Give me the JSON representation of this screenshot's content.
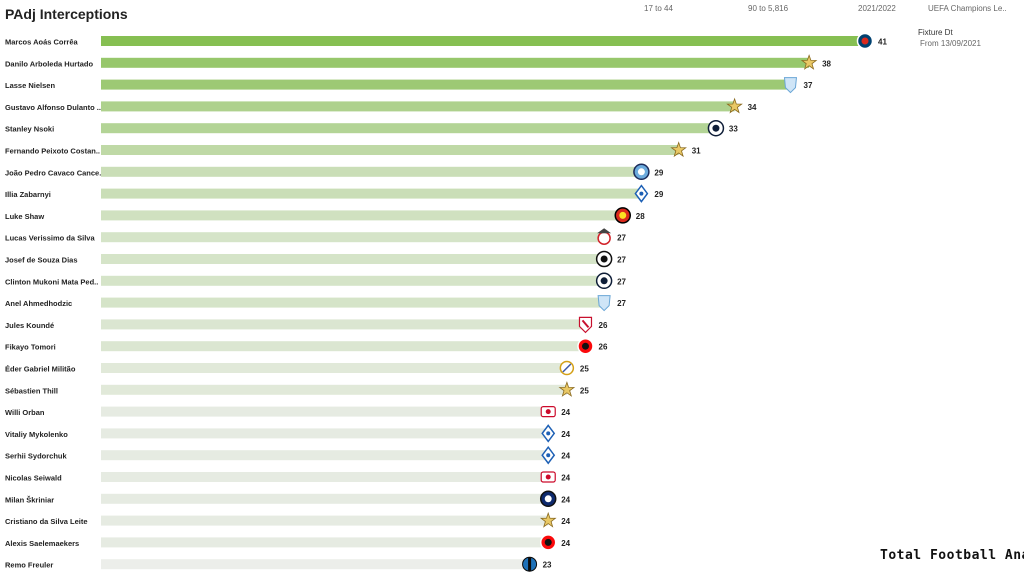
{
  "header": {
    "title": "PAdj Interceptions",
    "filter_age": "17 to 44",
    "filter_minutes": "90 to 5,816",
    "season": "2021/2022",
    "competition": "UEFA Champions Le..",
    "fixture_label": "Fixture Dt",
    "fixture_value": "From 13/09/2021"
  },
  "brand": "Total Football Analysis",
  "chart_data": {
    "type": "bar",
    "orientation": "horizontal",
    "title": "PAdj Interceptions",
    "xlim": [
      0,
      41
    ],
    "grid": false,
    "categories": [
      "Marcos  Aoás Corrêa",
      "Danilo Arboleda Hurtado",
      "Lasse Nielsen",
      "Gustavo Alfonso Dulanto ..",
      "Stanley Nsoki",
      "Fernando Peixoto Costan..",
      "João Pedro Cavaco Cance..",
      "Illia Zabarnyi",
      "Luke Shaw",
      "Lucas Verissimo da Silva",
      "Josef de Souza Dias",
      "Clinton Mukoni Mata Ped..",
      "Anel Ahmedhodzic",
      "Jules Koundé",
      "Fikayo Tomori",
      "Éder Gabriel Militão",
      "Sébastien Thill",
      "Willi Orban",
      "Vitaliy Mykolenko",
      "Serhii Sydorchuk",
      "Nicolas Seiwald",
      "Milan Škriniar",
      "Cristiano da Silva Leite",
      "Alexis Saelemaekers",
      "Remo Freuler"
    ],
    "values": [
      41,
      38,
      37,
      34,
      33,
      31,
      29,
      29,
      28,
      27,
      27,
      27,
      27,
      26,
      26,
      25,
      25,
      24,
      24,
      24,
      24,
      24,
      24,
      24,
      23
    ],
    "club_badges": [
      "psg-badge",
      "sheriff-badge",
      "malmo-badge",
      "sheriff-badge",
      "club-brugge-badge",
      "sheriff-badge",
      "man-city-badge",
      "dynamo-kyiv-badge",
      "man-united-badge",
      "benfica-badge",
      "besiktas-badge",
      "club-brugge-badge",
      "malmo-badge",
      "sevilla-badge",
      "ac-milan-badge",
      "real-madrid-badge",
      "sheriff-badge",
      "rb-leipzig-badge",
      "dynamo-kyiv-badge",
      "dynamo-kyiv-badge",
      "salzburg-badge",
      "inter-badge",
      "sheriff-badge",
      "ac-milan-badge",
      "atalanta-badge"
    ],
    "colors": {
      "bar_low": "#eceeea",
      "bar_high": "#86bf52",
      "label": "#222222"
    }
  }
}
